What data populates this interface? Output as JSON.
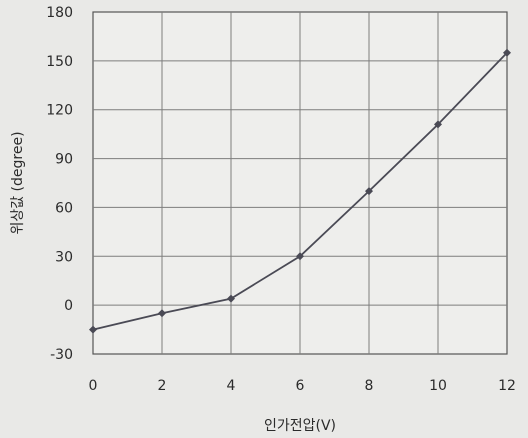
{
  "chart_data": {
    "type": "line",
    "xlabel": "인가전압(V)",
    "ylabel": "위상값 (degree)",
    "x": [
      0,
      2,
      4,
      6,
      8,
      10,
      12
    ],
    "xlim": [
      0,
      12
    ],
    "ylim": [
      -30,
      180
    ],
    "x_ticks": [
      "0",
      "2",
      "4",
      "6",
      "8",
      "10",
      "12"
    ],
    "y_ticks": [
      "180",
      "150",
      "120",
      "90",
      "60",
      "30",
      "0",
      "-30"
    ],
    "grid": true,
    "series": [
      {
        "values": [
          -15,
          -5,
          4,
          30,
          70,
          111,
          155
        ]
      }
    ],
    "colors": {
      "line": "#4a4a55",
      "grid": "#7d7d7d",
      "frame": "#555555",
      "background": "#e9e9e7"
    }
  }
}
